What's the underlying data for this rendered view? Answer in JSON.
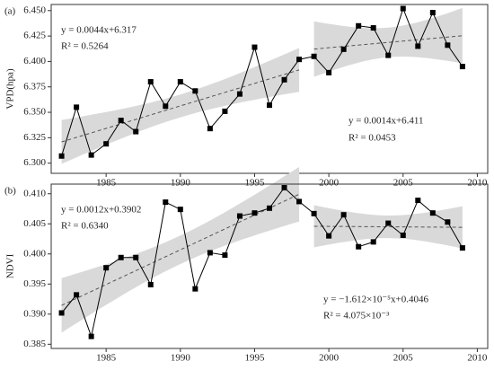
{
  "chart_data": [
    {
      "type": "line",
      "title": "(a)",
      "y_label": "VPD(hpa)",
      "x": [
        1982,
        1983,
        1984,
        1985,
        1986,
        1987,
        1988,
        1989,
        1990,
        1991,
        1992,
        1993,
        1994,
        1995,
        1996,
        1997,
        1998,
        1999,
        2000,
        2001,
        2002,
        2003,
        2004,
        2005,
        2006,
        2007,
        2008,
        2009
      ],
      "values": [
        6.307,
        6.355,
        6.308,
        6.319,
        6.342,
        6.331,
        6.38,
        6.356,
        6.38,
        6.371,
        6.334,
        6.351,
        6.368,
        6.414,
        6.357,
        6.382,
        6.402,
        6.405,
        6.389,
        6.412,
        6.435,
        6.433,
        6.406,
        6.452,
        6.415,
        6.448,
        6.416,
        6.395
      ],
      "color": "#000000",
      "trend_color": "#555555",
      "band_color": "#d9d9d9",
      "fit_segments": [
        [
          1982,
          1998
        ],
        [
          1999,
          2009
        ]
      ],
      "annotations": [
        "y = 0.0044x+6.317",
        "R² = 0.5264",
        "y = 0.0014x+6.411",
        "R² = 0.0453"
      ],
      "xlim": [
        1981.3,
        2010.7
      ],
      "xticks": [
        1985,
        1990,
        1995,
        2000,
        2005,
        2010
      ],
      "ylim": [
        6.29,
        6.456
      ],
      "yticks": [
        {
          "value": 6.3,
          "label": "6.300"
        },
        {
          "value": 6.325,
          "label": "6.325"
        },
        {
          "value": 6.35,
          "label": "6.350"
        },
        {
          "value": 6.375,
          "label": "6.375"
        },
        {
          "value": 6.4,
          "label": "6.400"
        },
        {
          "value": 6.425,
          "label": "6.425"
        },
        {
          "value": 6.45,
          "label": "6.450"
        }
      ]
    },
    {
      "type": "line",
      "title": "(b)",
      "y_label": "NDVI",
      "x": [
        1982,
        1983,
        1984,
        1985,
        1986,
        1987,
        1988,
        1989,
        1990,
        1991,
        1992,
        1993,
        1994,
        1995,
        1996,
        1997,
        1998,
        1999,
        2000,
        2001,
        2002,
        2003,
        2004,
        2005,
        2006,
        2007,
        2008,
        2009
      ],
      "values": [
        0.3902,
        0.3932,
        0.3863,
        0.3977,
        0.3994,
        0.3994,
        0.3949,
        0.4086,
        0.4074,
        0.3942,
        0.4002,
        0.3998,
        0.4063,
        0.4068,
        0.4076,
        0.411,
        0.4087,
        0.4067,
        0.403,
        0.4065,
        0.4012,
        0.402,
        0.4051,
        0.4031,
        0.4089,
        0.4068,
        0.4053,
        0.401
      ],
      "color": "#000000",
      "trend_color": "#555555",
      "band_color": "#d9d9d9",
      "fit_segments": [
        [
          1982,
          1998
        ],
        [
          1999,
          2009
        ]
      ],
      "annotations": [
        "y = 0.0012x+0.3902",
        "R² = 0.6340",
        "y = −1.612×10⁻⁵x+0.4046",
        "R² = 4.075×10⁻³"
      ],
      "xlim": [
        1981.3,
        2010.7
      ],
      "xticks": [
        1985,
        1990,
        1995,
        2000,
        2005,
        2010
      ],
      "ylim": [
        0.3843,
        0.4116
      ],
      "yticks": [
        0.385,
        {
          "value": 0.39,
          "label": "0.390"
        },
        0.395,
        {
          "value": 0.4,
          "label": "0.400"
        },
        0.405,
        {
          "value": 0.41,
          "label": "0.410"
        }
      ]
    }
  ]
}
